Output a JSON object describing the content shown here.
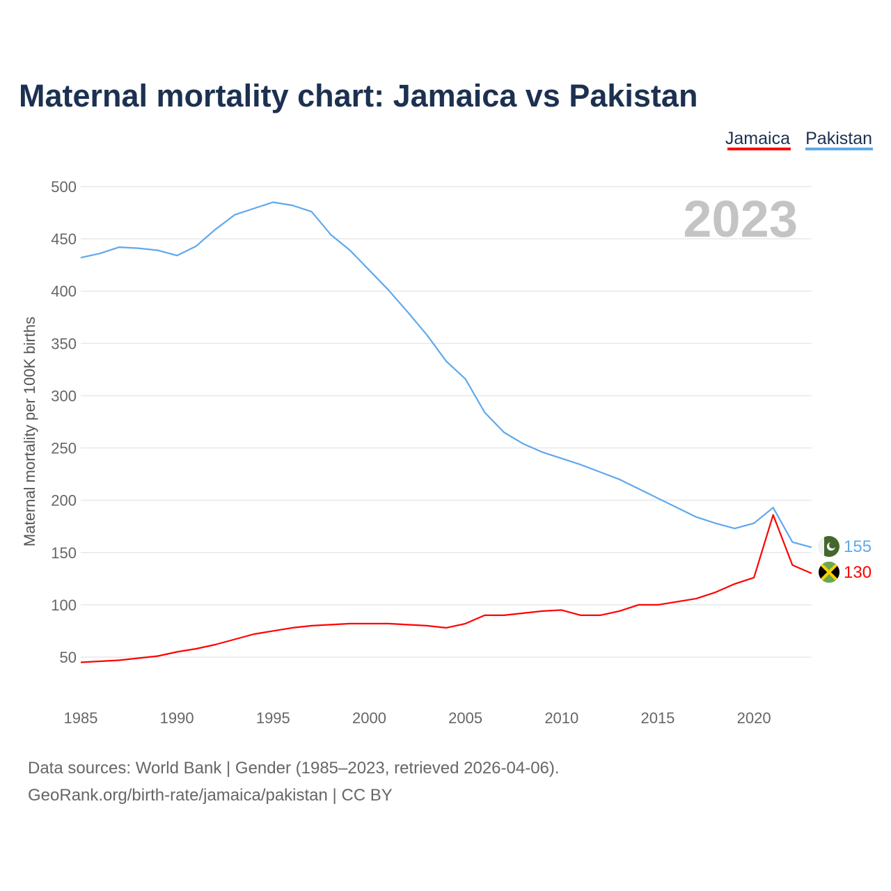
{
  "chart_data": {
    "type": "line",
    "title": "Maternal mortality chart: Jamaica vs Pakistan",
    "xlabel": "",
    "ylabel": "Maternal mortality per 100K births",
    "xlim": [
      1985,
      2023
    ],
    "ylim": [
      50,
      500
    ],
    "grid": true,
    "legend_placement": "top-right",
    "x_ticks": [
      "1985",
      "1990",
      "1995",
      "2000",
      "2005",
      "2010",
      "2015",
      "2020"
    ],
    "y_ticks": [
      "50",
      "100",
      "150",
      "200",
      "250",
      "300",
      "350",
      "400",
      "450",
      "500"
    ],
    "year_watermark": "2023",
    "x": [
      1985,
      1986,
      1987,
      1988,
      1989,
      1990,
      1991,
      1992,
      1993,
      1994,
      1995,
      1996,
      1997,
      1998,
      1999,
      2000,
      2001,
      2002,
      2003,
      2004,
      2005,
      2006,
      2007,
      2008,
      2009,
      2010,
      2011,
      2012,
      2013,
      2014,
      2015,
      2016,
      2017,
      2018,
      2019,
      2020,
      2021,
      2022,
      2023
    ],
    "series": [
      {
        "name": "Jamaica",
        "color": "#ff0000",
        "end_label": "130",
        "flag": "jamaica-flag",
        "values": [
          45,
          46,
          47,
          49,
          51,
          55,
          58,
          62,
          67,
          72,
          75,
          78,
          80,
          81,
          82,
          82,
          82,
          81,
          80,
          78,
          82,
          90,
          90,
          92,
          94,
          95,
          90,
          90,
          94,
          100,
          100,
          103,
          106,
          112,
          120,
          126,
          186,
          138,
          130
        ]
      },
      {
        "name": "Pakistan",
        "color": "#5ea8ec",
        "end_label": "155",
        "flag": "pakistan-flag",
        "values": [
          432,
          436,
          442,
          441,
          439,
          434,
          443,
          459,
          473,
          479,
          485,
          482,
          476,
          454,
          439,
          420,
          401,
          380,
          358,
          333,
          316,
          284,
          265,
          254,
          246,
          240,
          234,
          227,
          220,
          211,
          202,
          193,
          184,
          178,
          173,
          178,
          193,
          160,
          155
        ]
      }
    ]
  },
  "footer": {
    "line1": "Data sources: World Bank | Gender (1985–2023, retrieved 2026-04-06).",
    "line2": "GeoRank.org/birth-rate/jamaica/pakistan | CC BY"
  }
}
